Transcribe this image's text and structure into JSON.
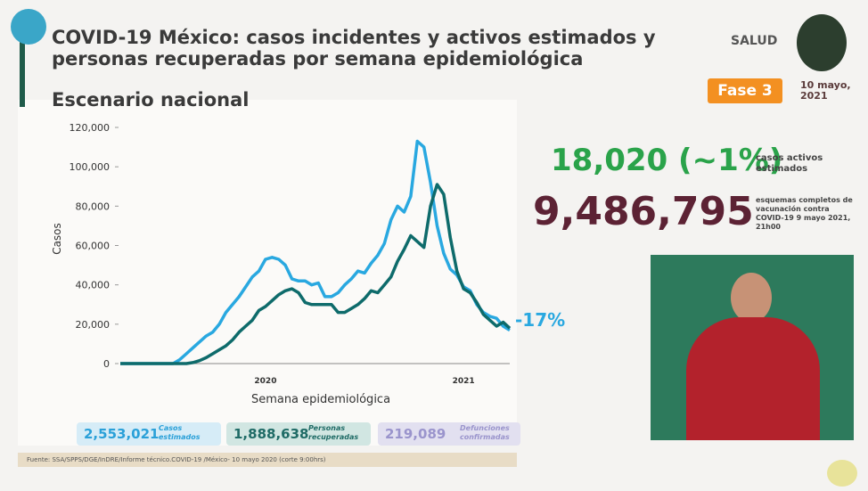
{
  "header": {
    "title": "COVID-19 México: casos incidentes y activos estimados y personas recuperadas por semana epidemiológica",
    "subtitle": "Escenario nacional",
    "logo": "SALUD",
    "phase": "Fase 3",
    "date": "10 mayo, 2021"
  },
  "stats": {
    "active_cases": "18,020 (~1%)",
    "active_cases_label": "casos activos estimados",
    "vaccinations": "9,486,795",
    "vaccinations_label": "esquemas completos de vacunación contra COVID-19 9 mayo 2021, 21h00"
  },
  "boxes": [
    {
      "value": "2,553,021",
      "label": "Casos estimados"
    },
    {
      "value": "1,888,638",
      "label": "Personas recuperadas"
    },
    {
      "value": "219,089",
      "label": "Defunciones confirmadas"
    }
  ],
  "footer": {
    "source": "Fuente: SSA/SPPS/DGE/InDRE/Informe técnico.COVID-19 /México- 10 mayo 2020 (corte 9:00hrs)"
  },
  "chart_data": {
    "type": "line",
    "x_label": "Semana epidemiológica",
    "y_label": "Casos",
    "annotation": "-17%",
    "categories": [
      null,
      null,
      null,
      null,
      null,
      null,
      null,
      null,
      null,
      null,
      null,
      null,
      null,
      null,
      null,
      null,
      null,
      null,
      null,
      null,
      null,
      null,
      "2020",
      null,
      null,
      null,
      null,
      null,
      null,
      null,
      null,
      null,
      null,
      null,
      null,
      null,
      null,
      null,
      null,
      null,
      null,
      null,
      null,
      null,
      null,
      null,
      null,
      null,
      null,
      null,
      null,
      null,
      "2021",
      null,
      null,
      null,
      null,
      null,
      null,
      null
    ],
    "series": [
      {
        "color": "#29a8e0",
        "values": [
          0,
          0,
          0,
          0,
          0,
          0,
          0,
          0,
          0,
          2000,
          5000,
          8000,
          11000,
          14000,
          16000,
          20000,
          26000,
          30000,
          34000,
          39000,
          44000,
          47000,
          53000,
          54000,
          53000,
          50000,
          43000,
          42000,
          42000,
          40000,
          41000,
          34000,
          34000,
          36000,
          40000,
          43000,
          47000,
          46000,
          51000,
          55000,
          61000,
          73000,
          80000,
          77000,
          85000,
          113000,
          110000,
          92000,
          70000,
          56000,
          48000,
          45000,
          39000,
          37000,
          30000,
          26000,
          24000,
          23000,
          19000,
          17000
        ]
      },
      {
        "color": "#0e6b6b",
        "values": [
          0,
          0,
          0,
          0,
          0,
          0,
          0,
          0,
          0,
          0,
          0,
          500,
          1500,
          3000,
          5000,
          7000,
          9000,
          12000,
          16000,
          19000,
          22000,
          27000,
          29000,
          32000,
          35000,
          37000,
          38000,
          36000,
          31000,
          30000,
          30000,
          30000,
          30000,
          26000,
          26000,
          28000,
          30000,
          33000,
          37000,
          36000,
          40000,
          44000,
          52000,
          58000,
          65000,
          62000,
          59000,
          80000,
          91000,
          86000,
          64000,
          47000,
          38000,
          36000,
          31000,
          25000,
          22000,
          19000,
          21000,
          18000
        ]
      }
    ],
    "ylim": [
      0,
      120000
    ],
    "yticks": [
      0,
      {
        "value": 20000,
        "label": "20,000"
      },
      {
        "value": 40000,
        "label": "40,000"
      },
      {
        "value": 60000,
        "label": "60,000"
      },
      {
        "value": 80000,
        "label": "80,000"
      },
      {
        "value": 100000,
        "label": "100,000"
      },
      {
        "value": 120000,
        "label": "120,000"
      }
    ]
  }
}
